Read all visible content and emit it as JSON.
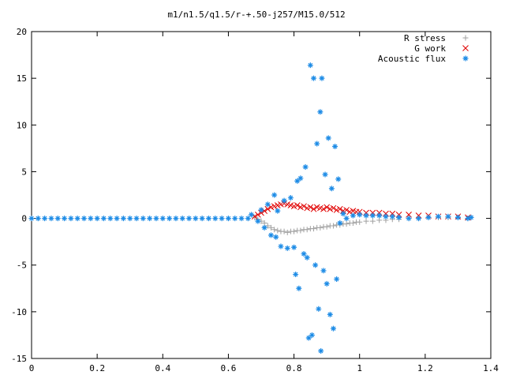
{
  "chart_data": {
    "type": "scatter",
    "title": "m1/n1.5/q1.5/r-+.50-j257/M15.0/512",
    "xlabel": "",
    "ylabel": "",
    "xlim": [
      0,
      1.4
    ],
    "ylim": [
      -15,
      20
    ],
    "x_ticks": [
      "0",
      "0.2",
      "0.4",
      "0.6",
      "0.8",
      "1",
      "1.2",
      "1.4"
    ],
    "y_ticks": [
      "20",
      "15",
      "10",
      "5",
      "0",
      "-5",
      "-10",
      "-15"
    ],
    "grid": false,
    "legend_position": "top-right",
    "series": [
      {
        "name": "R stress",
        "marker": "plus",
        "color": "#a0a0a0",
        "points": [
          [
            0.68,
            0.1
          ],
          [
            0.69,
            -0.1
          ],
          [
            0.7,
            -0.3
          ],
          [
            0.71,
            -0.5
          ],
          [
            0.72,
            -0.8
          ],
          [
            0.73,
            -1.0
          ],
          [
            0.74,
            -1.2
          ],
          [
            0.75,
            -1.3
          ],
          [
            0.76,
            -1.4
          ],
          [
            0.77,
            -1.4
          ],
          [
            0.78,
            -1.5
          ],
          [
            0.79,
            -1.4
          ],
          [
            0.8,
            -1.4
          ],
          [
            0.81,
            -1.3
          ],
          [
            0.82,
            -1.3
          ],
          [
            0.83,
            -1.2
          ],
          [
            0.84,
            -1.2
          ],
          [
            0.85,
            -1.1
          ],
          [
            0.86,
            -1.1
          ],
          [
            0.87,
            -1.0
          ],
          [
            0.88,
            -1.0
          ],
          [
            0.89,
            -0.9
          ],
          [
            0.9,
            -0.9
          ],
          [
            0.91,
            -0.8
          ],
          [
            0.92,
            -0.8
          ],
          [
            0.93,
            -0.7
          ],
          [
            0.94,
            -0.7
          ],
          [
            0.95,
            -0.6
          ],
          [
            0.96,
            -0.6
          ],
          [
            0.97,
            -0.5
          ],
          [
            0.98,
            -0.5
          ],
          [
            0.99,
            -0.4
          ],
          [
            1.0,
            -0.4
          ],
          [
            1.02,
            -0.3
          ],
          [
            1.04,
            -0.3
          ],
          [
            1.06,
            -0.2
          ],
          [
            1.08,
            -0.2
          ],
          [
            1.1,
            -0.1
          ],
          [
            1.12,
            -0.1
          ],
          [
            1.15,
            0.0
          ],
          [
            1.18,
            0.0
          ],
          [
            1.21,
            0.1
          ],
          [
            1.24,
            0.1
          ],
          [
            1.27,
            0.1
          ],
          [
            1.3,
            0.1
          ],
          [
            1.33,
            0.0
          ]
        ]
      },
      {
        "name": "G work",
        "marker": "cross",
        "color": "#e00000",
        "points": [
          [
            0.68,
            0.2
          ],
          [
            0.69,
            0.4
          ],
          [
            0.7,
            0.6
          ],
          [
            0.71,
            0.8
          ],
          [
            0.72,
            1.0
          ],
          [
            0.73,
            1.2
          ],
          [
            0.74,
            1.3
          ],
          [
            0.75,
            1.4
          ],
          [
            0.76,
            1.5
          ],
          [
            0.77,
            1.6
          ],
          [
            0.78,
            1.5
          ],
          [
            0.79,
            1.4
          ],
          [
            0.8,
            1.3
          ],
          [
            0.81,
            1.4
          ],
          [
            0.82,
            1.2
          ],
          [
            0.83,
            1.3
          ],
          [
            0.84,
            1.1
          ],
          [
            0.85,
            1.2
          ],
          [
            0.86,
            1.0
          ],
          [
            0.87,
            1.2
          ],
          [
            0.88,
            1.1
          ],
          [
            0.89,
            1.0
          ],
          [
            0.9,
            1.2
          ],
          [
            0.91,
            1.0
          ],
          [
            0.92,
            1.1
          ],
          [
            0.93,
            0.9
          ],
          [
            0.94,
            1.0
          ],
          [
            0.95,
            0.8
          ],
          [
            0.96,
            0.9
          ],
          [
            0.97,
            0.7
          ],
          [
            0.98,
            0.8
          ],
          [
            0.99,
            0.7
          ],
          [
            1.0,
            0.7
          ],
          [
            1.02,
            0.6
          ],
          [
            1.04,
            0.6
          ],
          [
            1.06,
            0.6
          ],
          [
            1.08,
            0.5
          ],
          [
            1.1,
            0.5
          ],
          [
            1.12,
            0.4
          ],
          [
            1.15,
            0.4
          ],
          [
            1.18,
            0.3
          ],
          [
            1.21,
            0.3
          ],
          [
            1.24,
            0.2
          ],
          [
            1.27,
            0.2
          ],
          [
            1.3,
            0.2
          ],
          [
            1.33,
            0.1
          ]
        ]
      },
      {
        "name": "Acoustic flux",
        "marker": "star",
        "color": "#1e8ce6",
        "points": [
          [
            0.0,
            0.0
          ],
          [
            0.02,
            0.0
          ],
          [
            0.04,
            0.0
          ],
          [
            0.06,
            0.0
          ],
          [
            0.08,
            0.0
          ],
          [
            0.1,
            0.0
          ],
          [
            0.12,
            0.0
          ],
          [
            0.14,
            0.0
          ],
          [
            0.16,
            0.0
          ],
          [
            0.18,
            0.0
          ],
          [
            0.2,
            0.0
          ],
          [
            0.22,
            0.0
          ],
          [
            0.24,
            0.0
          ],
          [
            0.26,
            0.0
          ],
          [
            0.28,
            0.0
          ],
          [
            0.3,
            0.0
          ],
          [
            0.32,
            0.0
          ],
          [
            0.34,
            0.0
          ],
          [
            0.36,
            0.0
          ],
          [
            0.38,
            0.0
          ],
          [
            0.4,
            0.0
          ],
          [
            0.42,
            0.0
          ],
          [
            0.44,
            0.0
          ],
          [
            0.46,
            0.0
          ],
          [
            0.48,
            0.0
          ],
          [
            0.5,
            0.0
          ],
          [
            0.52,
            0.0
          ],
          [
            0.54,
            0.0
          ],
          [
            0.56,
            0.0
          ],
          [
            0.58,
            0.0
          ],
          [
            0.6,
            0.0
          ],
          [
            0.62,
            0.0
          ],
          [
            0.64,
            0.0
          ],
          [
            0.66,
            0.0
          ],
          [
            0.67,
            0.4
          ],
          [
            0.69,
            -0.3
          ],
          [
            0.7,
            0.9
          ],
          [
            0.71,
            -1.0
          ],
          [
            0.72,
            1.5
          ],
          [
            0.73,
            -1.8
          ],
          [
            0.74,
            2.5
          ],
          [
            0.745,
            -2.0
          ],
          [
            0.75,
            0.8
          ],
          [
            0.76,
            -3.0
          ],
          [
            0.77,
            1.9
          ],
          [
            0.78,
            -3.2
          ],
          [
            0.79,
            2.2
          ],
          [
            0.8,
            -3.1
          ],
          [
            0.805,
            -6.0
          ],
          [
            0.81,
            4.0
          ],
          [
            0.815,
            -7.5
          ],
          [
            0.82,
            4.3
          ],
          [
            0.83,
            -3.8
          ],
          [
            0.835,
            5.5
          ],
          [
            0.84,
            -4.2
          ],
          [
            0.845,
            -12.8
          ],
          [
            0.85,
            16.4
          ],
          [
            0.855,
            -12.5
          ],
          [
            0.86,
            15.0
          ],
          [
            0.865,
            -5.0
          ],
          [
            0.87,
            8.0
          ],
          [
            0.875,
            -9.7
          ],
          [
            0.88,
            11.4
          ],
          [
            0.882,
            -14.2
          ],
          [
            0.885,
            15.0
          ],
          [
            0.89,
            -5.6
          ],
          [
            0.895,
            4.7
          ],
          [
            0.9,
            -7.0
          ],
          [
            0.905,
            8.6
          ],
          [
            0.91,
            -10.3
          ],
          [
            0.915,
            3.2
          ],
          [
            0.92,
            -11.8
          ],
          [
            0.925,
            7.7
          ],
          [
            0.93,
            -6.5
          ],
          [
            0.935,
            4.2
          ],
          [
            0.94,
            -0.5
          ],
          [
            0.95,
            0.5
          ],
          [
            0.96,
            0.0
          ],
          [
            0.98,
            0.3
          ],
          [
            1.0,
            0.4
          ],
          [
            1.02,
            0.3
          ],
          [
            1.04,
            0.3
          ],
          [
            1.06,
            0.3
          ],
          [
            1.08,
            0.2
          ],
          [
            1.1,
            0.2
          ],
          [
            1.12,
            0.1
          ],
          [
            1.15,
            0.0
          ],
          [
            1.18,
            0.0
          ],
          [
            1.21,
            0.1
          ],
          [
            1.24,
            0.2
          ],
          [
            1.27,
            0.2
          ],
          [
            1.3,
            0.1
          ],
          [
            1.33,
            0.0
          ],
          [
            1.34,
            0.1
          ]
        ]
      }
    ]
  }
}
